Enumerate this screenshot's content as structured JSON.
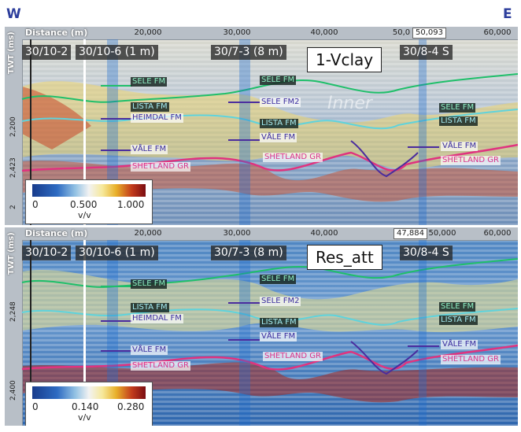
{
  "compass": {
    "west": "W",
    "east": "E"
  },
  "colors": {
    "sele": "#1fbf6a",
    "lista": "#5fd3dc",
    "purple": "#4a2c9e",
    "pink": "#e0337f",
    "colorbar": [
      "#183c8c",
      "#2e6bc2",
      "#93c2e4",
      "#f2f2f2",
      "#f6e89a",
      "#e8b02a",
      "#c23a1c",
      "#7a0d12"
    ]
  },
  "panels": [
    {
      "axis_title": "Distance (m)",
      "ticks": [
        "20,000",
        "30,000",
        "40,000",
        "50,0",
        "60,000"
      ],
      "cursor_readout": "50,093",
      "vertical_title": "TWT (ms)",
      "vertical_ticks": [
        "2,200",
        "2,423",
        "2"
      ],
      "wells": [
        "30/10-2",
        "30/10-6 (1 m)",
        "30/7-3 (8 m)",
        "30/8-4 S"
      ],
      "attribute_label": "1-Vclay",
      "annotation": "Inner",
      "formations": {
        "sele_left": "SELE FM",
        "lista_left": "LISTA FM",
        "heimdal": "HEIMDAL FM",
        "vale_left": "VÅLE FM",
        "shetland_left": "SHETLAND GR",
        "sele_mid": "SELE FM",
        "sele2_mid": "SELE FM2",
        "lista_mid": "LISTA FM",
        "vale_mid": "VÅLE FM",
        "shetland_mid": "SHETLAND GR",
        "sele_right": "SELE FM",
        "lista_right": "LISTA FM",
        "vale_right": "VÅLE FM",
        "shetland_right": "SHETLAND GR"
      },
      "colorbar": {
        "min": "0",
        "mid": "0.500",
        "max": "1.000",
        "unit": "v/v"
      }
    },
    {
      "axis_title": "Distance (m)",
      "ticks": [
        "20,000",
        "30,000",
        "40,000",
        "50,000",
        "60,000"
      ],
      "cursor_readout": "47,884",
      "vertical_title": "TWT (ms)",
      "vertical_ticks": [
        "2,248",
        "2,400"
      ],
      "wells": [
        "30/10-2",
        "30/10-6 (1 m)",
        "30/7-3 (8 m)",
        "30/8-4 S"
      ],
      "attribute_label": "Res_att",
      "annotation": "",
      "formations": {
        "sele_left": "SELE FM",
        "lista_left": "LISTA FM",
        "heimdal": "HEIMDAL FM",
        "vale_left": "VÅLE FM",
        "shetland_left": "SHETLAND GR",
        "sele_mid": "SELE FM",
        "sele2_mid": "SELE FM2",
        "lista_mid": "LISTA FM",
        "vale_mid": "VÅLE FM",
        "shetland_mid": "SHETLAND GR",
        "sele_right": "SELE FM",
        "lista_right": "LISTA FM",
        "vale_right": "VÅLE FM",
        "shetland_right": "SHETLAND GR"
      },
      "colorbar": {
        "min": "0",
        "mid": "0.140",
        "max": "0.280",
        "unit": "v/v"
      }
    }
  ]
}
